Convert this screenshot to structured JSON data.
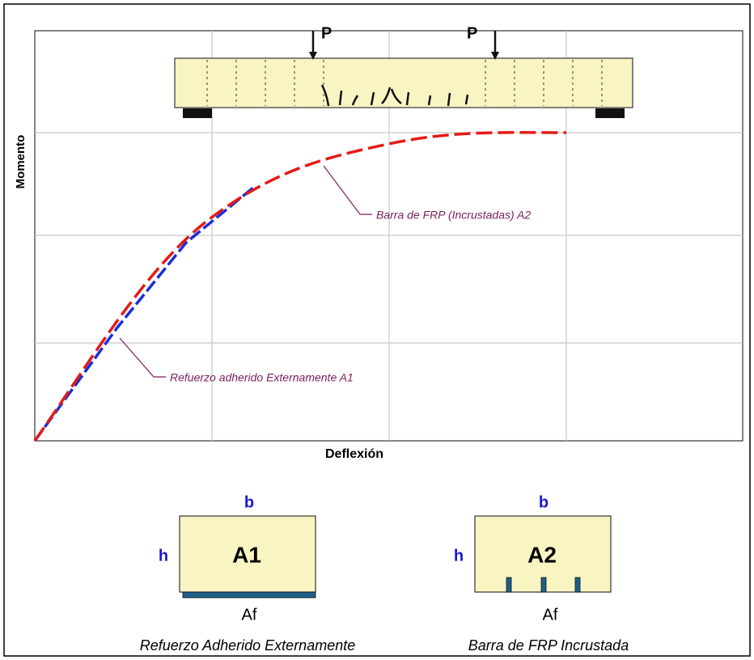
{
  "beam": {
    "load_left": "P",
    "load_right": "P"
  },
  "axes": {
    "y_label": "Momento",
    "x_label": "Deflexión"
  },
  "annotations": [
    "Barra de FRP (Incrustadas) A2",
    "Refuerzo adherido Externamente A1"
  ],
  "sections": [
    {
      "width_label": "b",
      "height_label": "h",
      "name": "A1",
      "area_label": "Af",
      "caption": "Refuerzo Adherido Externamente"
    },
    {
      "width_label": "b",
      "height_label": "h",
      "name": "A2",
      "area_label": "Af",
      "caption": "Barra de FRP Incrustada"
    }
  ]
}
